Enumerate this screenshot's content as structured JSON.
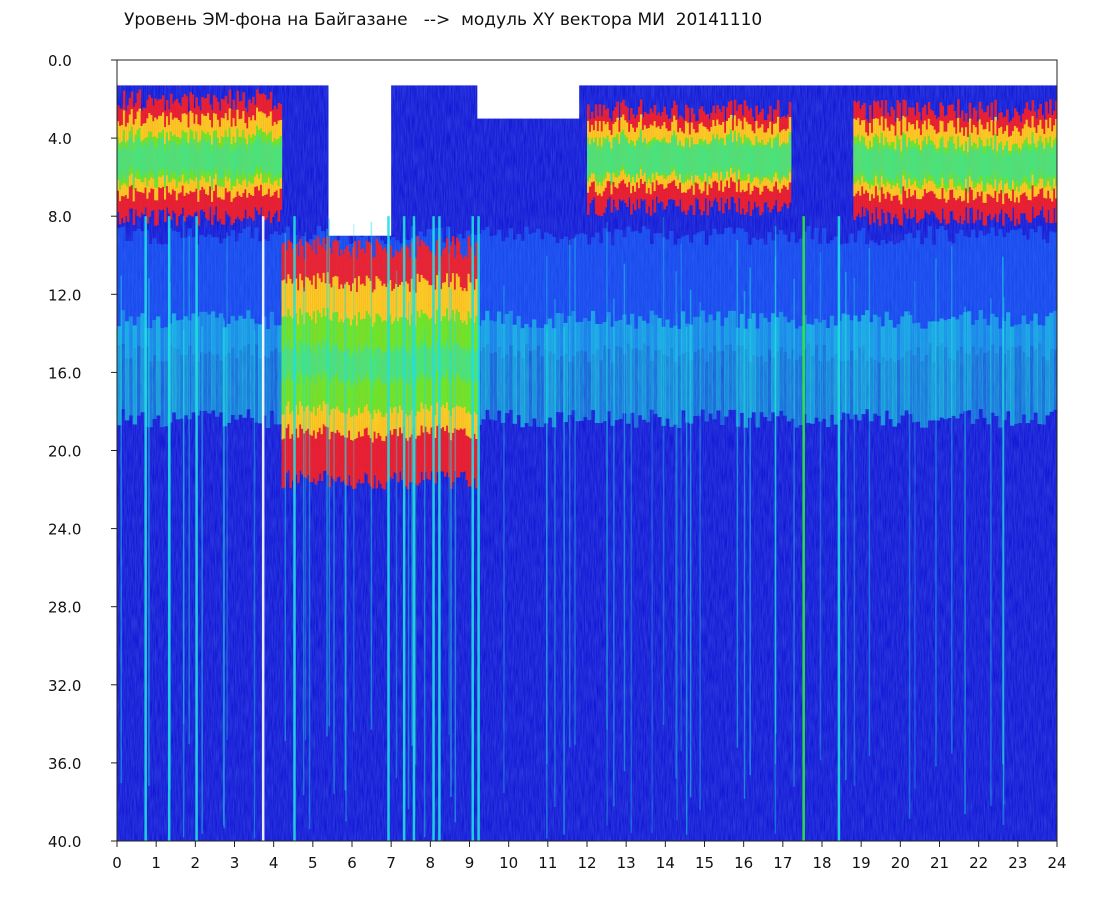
{
  "chart_data": {
    "type": "heatmap",
    "title": "Уровень ЭМ-фона на Байгазане   -->  модуль XY вектора МИ  20141110",
    "x_ticks": [
      "0",
      "1",
      "2",
      "3",
      "4",
      "5",
      "6",
      "7",
      "8",
      "9",
      "10",
      "11",
      "12",
      "13",
      "14",
      "15",
      "16",
      "17",
      "18",
      "19",
      "20",
      "21",
      "22",
      "23",
      "24"
    ],
    "y_ticks": [
      "0.0",
      "4.0",
      "8.0",
      "12.0",
      "16.0",
      "20.0",
      "24.0",
      "28.0",
      "32.0",
      "36.0",
      "40.0"
    ],
    "xlim": [
      0,
      24
    ],
    "ylim": [
      0,
      40
    ],
    "y_inverted": true,
    "colormap": [
      "#0b0bd2",
      "#1f6fff",
      "#20e0e0",
      "#30f030",
      "#ffff20",
      "#ff2020",
      "#ffffff"
    ],
    "background_color": "#0b0bd2",
    "high_activity_periods": [
      {
        "x_start": 0.0,
        "x_end": 4.2,
        "y_top": 1.5,
        "y_bottom": 8.5
      },
      {
        "x_start": 4.2,
        "x_end": 9.2,
        "y_top": 9.0,
        "y_bottom": 22.0
      },
      {
        "x_start": 12.0,
        "x_end": 17.2,
        "y_top": 2.0,
        "y_bottom": 8.0
      },
      {
        "x_start": 18.8,
        "x_end": 24.0,
        "y_top": 2.0,
        "y_bottom": 8.5
      }
    ],
    "bright_vertical_lines": [
      0.7,
      1.3,
      2.0,
      3.7,
      4.5,
      6.9,
      7.3,
      7.55,
      8.05,
      8.2,
      9.05,
      9.2,
      17.5,
      18.4
    ]
  }
}
